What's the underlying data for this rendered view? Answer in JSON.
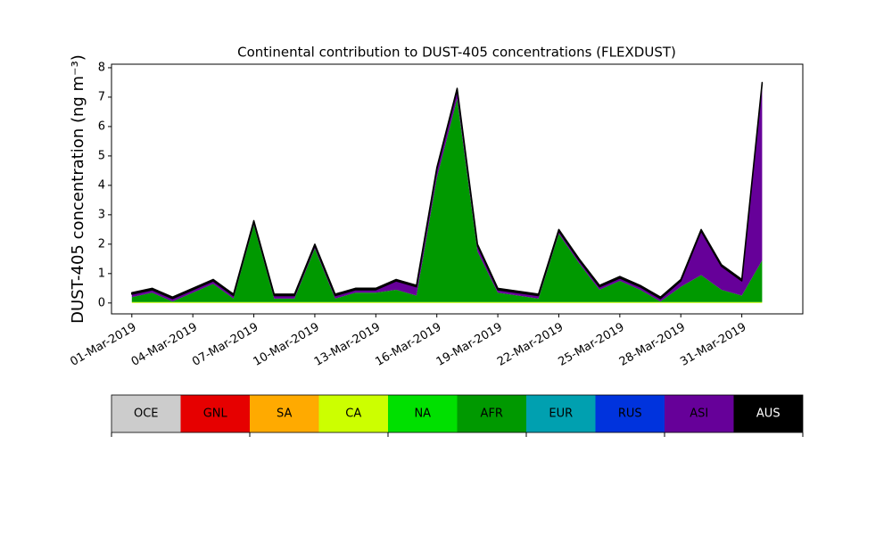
{
  "chart_data": {
    "type": "stacked_area",
    "title": "Continental contribution to DUST-405 concentrations (FLEXDUST)",
    "y_label": "DUST-405 concentration (ng m⁻³)",
    "x": [
      "2019-03-01",
      "2019-03-02",
      "2019-03-03",
      "2019-03-04",
      "2019-03-05",
      "2019-03-06",
      "2019-03-07",
      "2019-03-08",
      "2019-03-09",
      "2019-03-10",
      "2019-03-11",
      "2019-03-12",
      "2019-03-13",
      "2019-03-14",
      "2019-03-15",
      "2019-03-16",
      "2019-03-17",
      "2019-03-18",
      "2019-03-19",
      "2019-03-20",
      "2019-03-21",
      "2019-03-22",
      "2019-03-23",
      "2019-03-24",
      "2019-03-25",
      "2019-03-26",
      "2019-03-27",
      "2019-03-28",
      "2019-03-29",
      "2019-03-30",
      "2019-03-31",
      "2019-04-01"
    ],
    "xlim": [
      "2019-02-28",
      "2019-04-03"
    ],
    "xticks": [
      {
        "value": "2019-03-01",
        "label": "01-Mar-2019"
      },
      {
        "value": "2019-03-04",
        "label": "04-Mar-2019"
      },
      {
        "value": "2019-03-07",
        "label": "07-Mar-2019"
      },
      {
        "value": "2019-03-10",
        "label": "10-Mar-2019"
      },
      {
        "value": "2019-03-13",
        "label": "13-Mar-2019"
      },
      {
        "value": "2019-03-16",
        "label": "16-Mar-2019"
      },
      {
        "value": "2019-03-19",
        "label": "19-Mar-2019"
      },
      {
        "value": "2019-03-22",
        "label": "22-Mar-2019"
      },
      {
        "value": "2019-03-25",
        "label": "25-Mar-2019"
      },
      {
        "value": "2019-03-28",
        "label": "28-Mar-2019"
      },
      {
        "value": "2019-03-31",
        "label": "31-Mar-2019"
      }
    ],
    "ylim": [
      -0.37,
      8.12
    ],
    "yticks": [
      0,
      1,
      2,
      3,
      4,
      5,
      6,
      7,
      8
    ],
    "series": [
      {
        "name": "OCE",
        "color": "#cccccc",
        "values": [
          0,
          0,
          0,
          0,
          0,
          0,
          0,
          0,
          0,
          0,
          0,
          0,
          0,
          0,
          0,
          0,
          0,
          0,
          0,
          0,
          0,
          0,
          0,
          0,
          0,
          0,
          0,
          0,
          0,
          0,
          0,
          0
        ]
      },
      {
        "name": "GNL",
        "color": "#e60000",
        "values": [
          0,
          0,
          0,
          0,
          0,
          0,
          0,
          0,
          0,
          0,
          0,
          0,
          0,
          0,
          0,
          0,
          0,
          0,
          0,
          0,
          0,
          0,
          0,
          0,
          0,
          0,
          0,
          0,
          0,
          0,
          0,
          0
        ]
      },
      {
        "name": "SA",
        "color": "#ffaa00",
        "values": [
          0,
          0,
          0,
          0,
          0,
          0,
          0,
          0,
          0,
          0,
          0,
          0,
          0,
          0,
          0,
          0,
          0,
          0,
          0,
          0,
          0,
          0,
          0,
          0,
          0,
          0,
          0,
          0,
          0,
          0,
          0,
          0
        ]
      },
      {
        "name": "CA",
        "color": "#ccff00",
        "values": [
          0.03,
          0.03,
          0.03,
          0.03,
          0.03,
          0.03,
          0.03,
          0.03,
          0.03,
          0.03,
          0.03,
          0.03,
          0.03,
          0.03,
          0.03,
          0.03,
          0.03,
          0.03,
          0.03,
          0.03,
          0.03,
          0.03,
          0.03,
          0.03,
          0.03,
          0.03,
          0.03,
          0.03,
          0.03,
          0.03,
          0.03,
          0.03
        ]
      },
      {
        "name": "NA",
        "color": "#00e000",
        "values": [
          0,
          0,
          0,
          0,
          0,
          0,
          0,
          0,
          0,
          0,
          0,
          0,
          0,
          0,
          0,
          0,
          0,
          0,
          0,
          0,
          0,
          0,
          0,
          0,
          0,
          0,
          0,
          0,
          0,
          0,
          0,
          0
        ]
      },
      {
        "name": "AFR",
        "color": "#009900",
        "values": [
          0.17,
          0.32,
          0.02,
          0.32,
          0.62,
          0.12,
          2.62,
          0.12,
          0.12,
          1.82,
          0.12,
          0.32,
          0.32,
          0.42,
          0.22,
          4.22,
          6.92,
          1.72,
          0.32,
          0.22,
          0.12,
          2.32,
          1.32,
          0.42,
          0.72,
          0.42,
          0.02,
          0.52,
          0.92,
          0.42,
          0.22,
          1.42
        ]
      },
      {
        "name": "EUR",
        "color": "#00a0b0",
        "values": [
          0,
          0,
          0,
          0,
          0,
          0,
          0,
          0,
          0,
          0,
          0,
          0,
          0,
          0,
          0,
          0,
          0,
          0,
          0,
          0,
          0,
          0,
          0,
          0,
          0,
          0,
          0,
          0,
          0,
          0,
          0,
          0
        ]
      },
      {
        "name": "RUS",
        "color": "#0033dd",
        "values": [
          0,
          0,
          0,
          0,
          0,
          0,
          0,
          0,
          0,
          0,
          0,
          0,
          0,
          0,
          0,
          0,
          0,
          0,
          0,
          0,
          0,
          0,
          0,
          0,
          0,
          0,
          0,
          0,
          0,
          0,
          0,
          0
        ]
      },
      {
        "name": "ASI",
        "color": "#660099",
        "values": [
          0.1,
          0.1,
          0.1,
          0.1,
          0.1,
          0.1,
          0.1,
          0.1,
          0.1,
          0.1,
          0.1,
          0.1,
          0.1,
          0.3,
          0.3,
          0.3,
          0.3,
          0.2,
          0.1,
          0.1,
          0.1,
          0.1,
          0.1,
          0.1,
          0.1,
          0.1,
          0.1,
          0.2,
          1.5,
          0.8,
          0.5,
          6.0
        ]
      },
      {
        "name": "AUS",
        "color": "#000000",
        "values": [
          0.05,
          0.05,
          0.05,
          0.05,
          0.05,
          0.05,
          0.05,
          0.05,
          0.05,
          0.05,
          0.05,
          0.05,
          0.05,
          0.05,
          0.05,
          0.05,
          0.05,
          0.05,
          0.05,
          0.05,
          0.05,
          0.05,
          0.05,
          0.05,
          0.05,
          0.05,
          0.05,
          0.05,
          0.05,
          0.05,
          0.05,
          0.05
        ]
      }
    ]
  }
}
